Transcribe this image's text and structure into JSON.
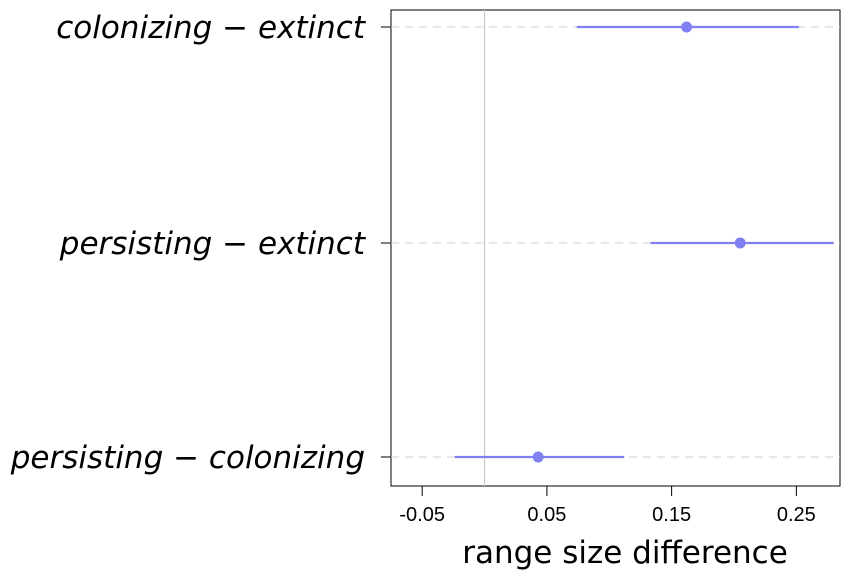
{
  "chart_data": {
    "type": "scatter",
    "subtype": "dot-and-whisker",
    "title": "",
    "xlabel": "range size difference",
    "ylabel": "",
    "xlim": [
      -0.075,
      0.285
    ],
    "xticks": [
      -0.05,
      0.05,
      0.15,
      0.25
    ],
    "xtick_labels": [
      "-0.05",
      "0.05",
      "0.15",
      "0.25"
    ],
    "reference_line_x": 0,
    "grid": "dashed horizontal lines at each comparison",
    "point_color": "#8080f2",
    "categories": [
      "colonizing − extinct",
      "persisting − extinct",
      "persisting − colonizing"
    ],
    "estimates": [
      0.162,
      0.205,
      0.043
    ],
    "lower": [
      0.074,
      0.133,
      -0.024
    ],
    "upper": [
      0.252,
      0.28,
      0.112
    ]
  }
}
